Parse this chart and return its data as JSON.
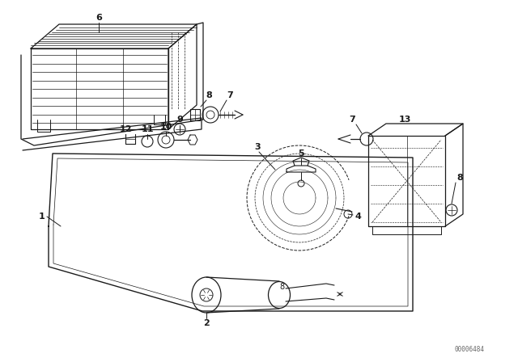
{
  "bg_color": "#ffffff",
  "line_color": "#1a1a1a",
  "watermark": "00006484",
  "figsize": [
    6.4,
    4.48
  ],
  "dpi": 100
}
